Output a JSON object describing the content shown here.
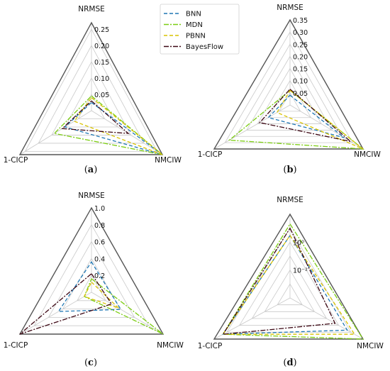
{
  "legend": {
    "items": [
      {
        "name": "BNN",
        "color": "#1f77b4",
        "dash": "5,3"
      },
      {
        "name": "MDN",
        "color": "#7ccd12",
        "dash": "7,2,2,2"
      },
      {
        "name": "PBNN",
        "color": "#d9c300",
        "dash": "5,3"
      },
      {
        "name": "BayesFlow",
        "color": "#3d0814",
        "dash": "7,2,2,2"
      }
    ]
  },
  "chart_data": [
    {
      "type": "radar",
      "panel_label": "a",
      "axes": [
        "NRMSE",
        "NMCIW",
        "1-CICP"
      ],
      "scale": "linear",
      "rmax": 0.27,
      "rticks": [
        0.05,
        0.1,
        0.15,
        0.2,
        0.25
      ],
      "rtick_labels": [
        "0.05",
        "0.10",
        "0.15",
        "0.20",
        "0.25"
      ],
      "series": [
        {
          "name": "BNN",
          "values": [
            0.025,
            0.27,
            0.1
          ]
        },
        {
          "name": "MDN",
          "values": [
            0.045,
            0.27,
            0.14
          ]
        },
        {
          "name": "PBNN",
          "values": [
            0.04,
            0.27,
            0.065
          ]
        },
        {
          "name": "BayesFlow",
          "values": [
            0.03,
            0.14,
            0.11
          ]
        }
      ]
    },
    {
      "type": "radar",
      "panel_label": "b",
      "axes": [
        "NRMSE",
        "NMCIW",
        "1-CICP"
      ],
      "scale": "linear",
      "rmax": 0.35,
      "rticks": [
        0.05,
        0.1,
        0.15,
        0.2,
        0.25,
        0.3,
        0.35
      ],
      "rtick_labels": [
        "0.05",
        "0.10",
        "0.15",
        "0.20",
        "0.25",
        "0.30",
        "0.35"
      ],
      "series": [
        {
          "name": "BNN",
          "values": [
            0.04,
            0.26,
            0.1
          ]
        },
        {
          "name": "MDN",
          "values": [
            0.06,
            0.35,
            0.28
          ]
        },
        {
          "name": "PBNN",
          "values": [
            0.06,
            0.35,
            0.06
          ]
        },
        {
          "name": "BayesFlow",
          "values": [
            0.065,
            0.29,
            0.14
          ]
        }
      ]
    },
    {
      "type": "radar",
      "panel_label": "c",
      "axes": [
        "NRMSE",
        "NMCIW",
        "1-CICP"
      ],
      "scale": "linear",
      "rmax": 1.0,
      "rticks": [
        0.2,
        0.4,
        0.6,
        0.8,
        1.0
      ],
      "rtick_labels": [
        "0.2",
        "0.4",
        "0.6",
        "0.8",
        "1.0"
      ],
      "series": [
        {
          "name": "BNN",
          "values": [
            0.36,
            0.41,
            0.46
          ]
        },
        {
          "name": "MDN",
          "values": [
            0.16,
            1.0,
            0.1
          ]
        },
        {
          "name": "PBNN",
          "values": [
            0.12,
            0.38,
            0.1
          ]
        },
        {
          "name": "BayesFlow",
          "values": [
            0.22,
            0.28,
            1.0
          ]
        }
      ]
    },
    {
      "type": "radar",
      "panel_label": "d",
      "axes": [
        "NRMSE",
        "NMCIW",
        "1-CICP"
      ],
      "scale": "log",
      "log_range": [
        -4,
        2
      ],
      "rticks": [
        -4,
        -3,
        -2,
        -1,
        0,
        1,
        2
      ],
      "rtick_labels": [
        "",
        "",
        "10⁻²",
        "",
        "10⁰",
        "",
        ""
      ],
      "series": [
        {
          "name": "BNN",
          "values": [
            3.0,
            5.0,
            20.0
          ]
        },
        {
          "name": "MDN",
          "values": [
            20.0,
            100.0,
            20.0
          ]
        },
        {
          "name": "PBNN",
          "values": [
            3.0,
            20.0,
            20.0
          ]
        },
        {
          "name": "BayesFlow",
          "values": [
            10.0,
            0.5,
            20.0
          ]
        }
      ]
    }
  ]
}
